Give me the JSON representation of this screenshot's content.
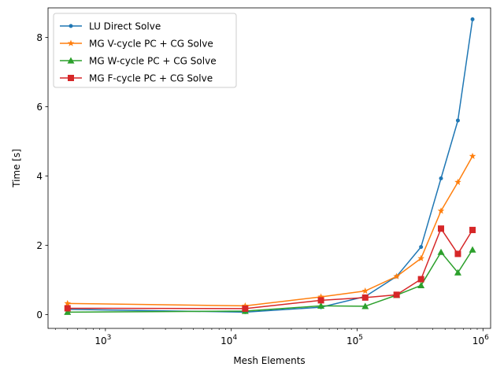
{
  "chart_data": {
    "type": "line",
    "xscale": "log",
    "xlabel": "Mesh Elements",
    "ylabel": "Time [s]",
    "xlim": [
      350,
      1150000
    ],
    "ylim": [
      -0.4,
      8.85
    ],
    "x_ticks": [
      {
        "value": 1000,
        "base": "10",
        "exp": "3"
      },
      {
        "value": 10000,
        "base": "10",
        "exp": "4"
      },
      {
        "value": 100000,
        "base": "10",
        "exp": "5"
      },
      {
        "value": 1000000,
        "base": "10",
        "exp": "6"
      }
    ],
    "y_ticks": [
      0,
      2,
      4,
      6,
      8
    ],
    "legend_position": "top-left",
    "grid": false,
    "x": [
      500,
      12900,
      51600,
      116000,
      206000,
      322000,
      464000,
      632000,
      826000
    ],
    "series": [
      {
        "name": "LU Direct Solve",
        "color": "#1f77b4",
        "marker": "dot",
        "values": [
          0.15,
          0.07,
          0.21,
          0.52,
          1.1,
          1.95,
          3.93,
          5.6,
          8.52
        ]
      },
      {
        "name": "MG V-cycle PC + CG Solve",
        "color": "#ff7f0e",
        "marker": "star",
        "values": [
          0.32,
          0.25,
          0.51,
          0.68,
          1.1,
          1.62,
          2.99,
          3.82,
          4.57
        ]
      },
      {
        "name": "MG W-cycle PC + CG Solve",
        "color": "#2ca02c",
        "marker": "triangle",
        "values": [
          0.07,
          0.1,
          0.25,
          0.24,
          0.56,
          0.84,
          1.8,
          1.21,
          1.87
        ]
      },
      {
        "name": "MG F-cycle PC + CG Solve",
        "color": "#d62728",
        "marker": "square",
        "values": [
          0.18,
          0.17,
          0.41,
          0.49,
          0.57,
          1.02,
          2.48,
          1.75,
          2.44
        ]
      }
    ]
  }
}
